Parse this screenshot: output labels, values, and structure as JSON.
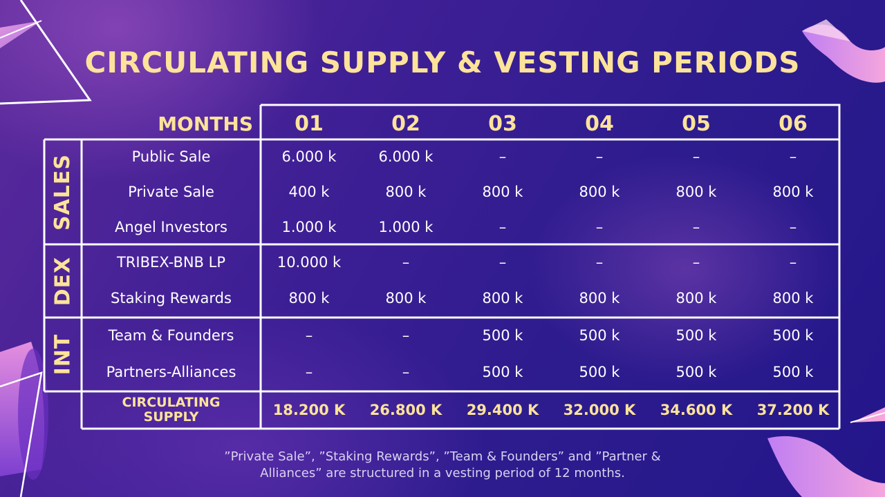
{
  "title": "CIRCULATING SUPPLY & VESTING PERIODS",
  "colors": {
    "accent": "#fde39a",
    "grid": "#ffffff",
    "bg_dark": "#23168a",
    "bg_light": "#5b2a9c"
  },
  "table": {
    "months_label": "MONTHS",
    "months": [
      "01",
      "02",
      "03",
      "04",
      "05",
      "06"
    ],
    "groups": [
      {
        "name": "SALES",
        "rows": [
          {
            "label": "Public Sale",
            "values": [
              "6.000 k",
              "6.000 k",
              "–",
              "–",
              "–",
              "–"
            ]
          },
          {
            "label": "Private Sale",
            "values": [
              "400 k",
              "800 k",
              "800 k",
              "800 k",
              "800 k",
              "800 k"
            ]
          },
          {
            "label": "Angel Investors",
            "values": [
              "1.000 k",
              "1.000 k",
              "–",
              "–",
              "–",
              "–"
            ]
          }
        ]
      },
      {
        "name": "DEX",
        "rows": [
          {
            "label": "TRIBEX-BNB LP",
            "values": [
              "10.000 k",
              "–",
              "–",
              "–",
              "–",
              "–"
            ]
          },
          {
            "label": "Staking Rewards",
            "values": [
              "800 k",
              "800 k",
              "800 k",
              "800 k",
              "800 k",
              "800 k"
            ]
          }
        ]
      },
      {
        "name": "INT",
        "rows": [
          {
            "label": "Team & Founders",
            "values": [
              "–",
              "–",
              "500 k",
              "500 k",
              "500 k",
              "500 k"
            ]
          },
          {
            "label": "Partners-Alliances",
            "values": [
              "–",
              "–",
              "500 k",
              "500 k",
              "500 k",
              "500 k"
            ]
          }
        ]
      }
    ],
    "total": {
      "label_line1": "CIRCULATING",
      "label_line2": "SUPPLY",
      "values": [
        "18.200 K",
        "26.800 K",
        "29.400 K",
        "32.000 K",
        "34.600 K",
        "37.200 K"
      ]
    }
  },
  "footnote": {
    "line1": "”Private Sale”, ”Staking Rewards”, ”Team & Founders” and ”Partner &",
    "line2": "Alliances” are structured in a vesting period of 12 months."
  }
}
